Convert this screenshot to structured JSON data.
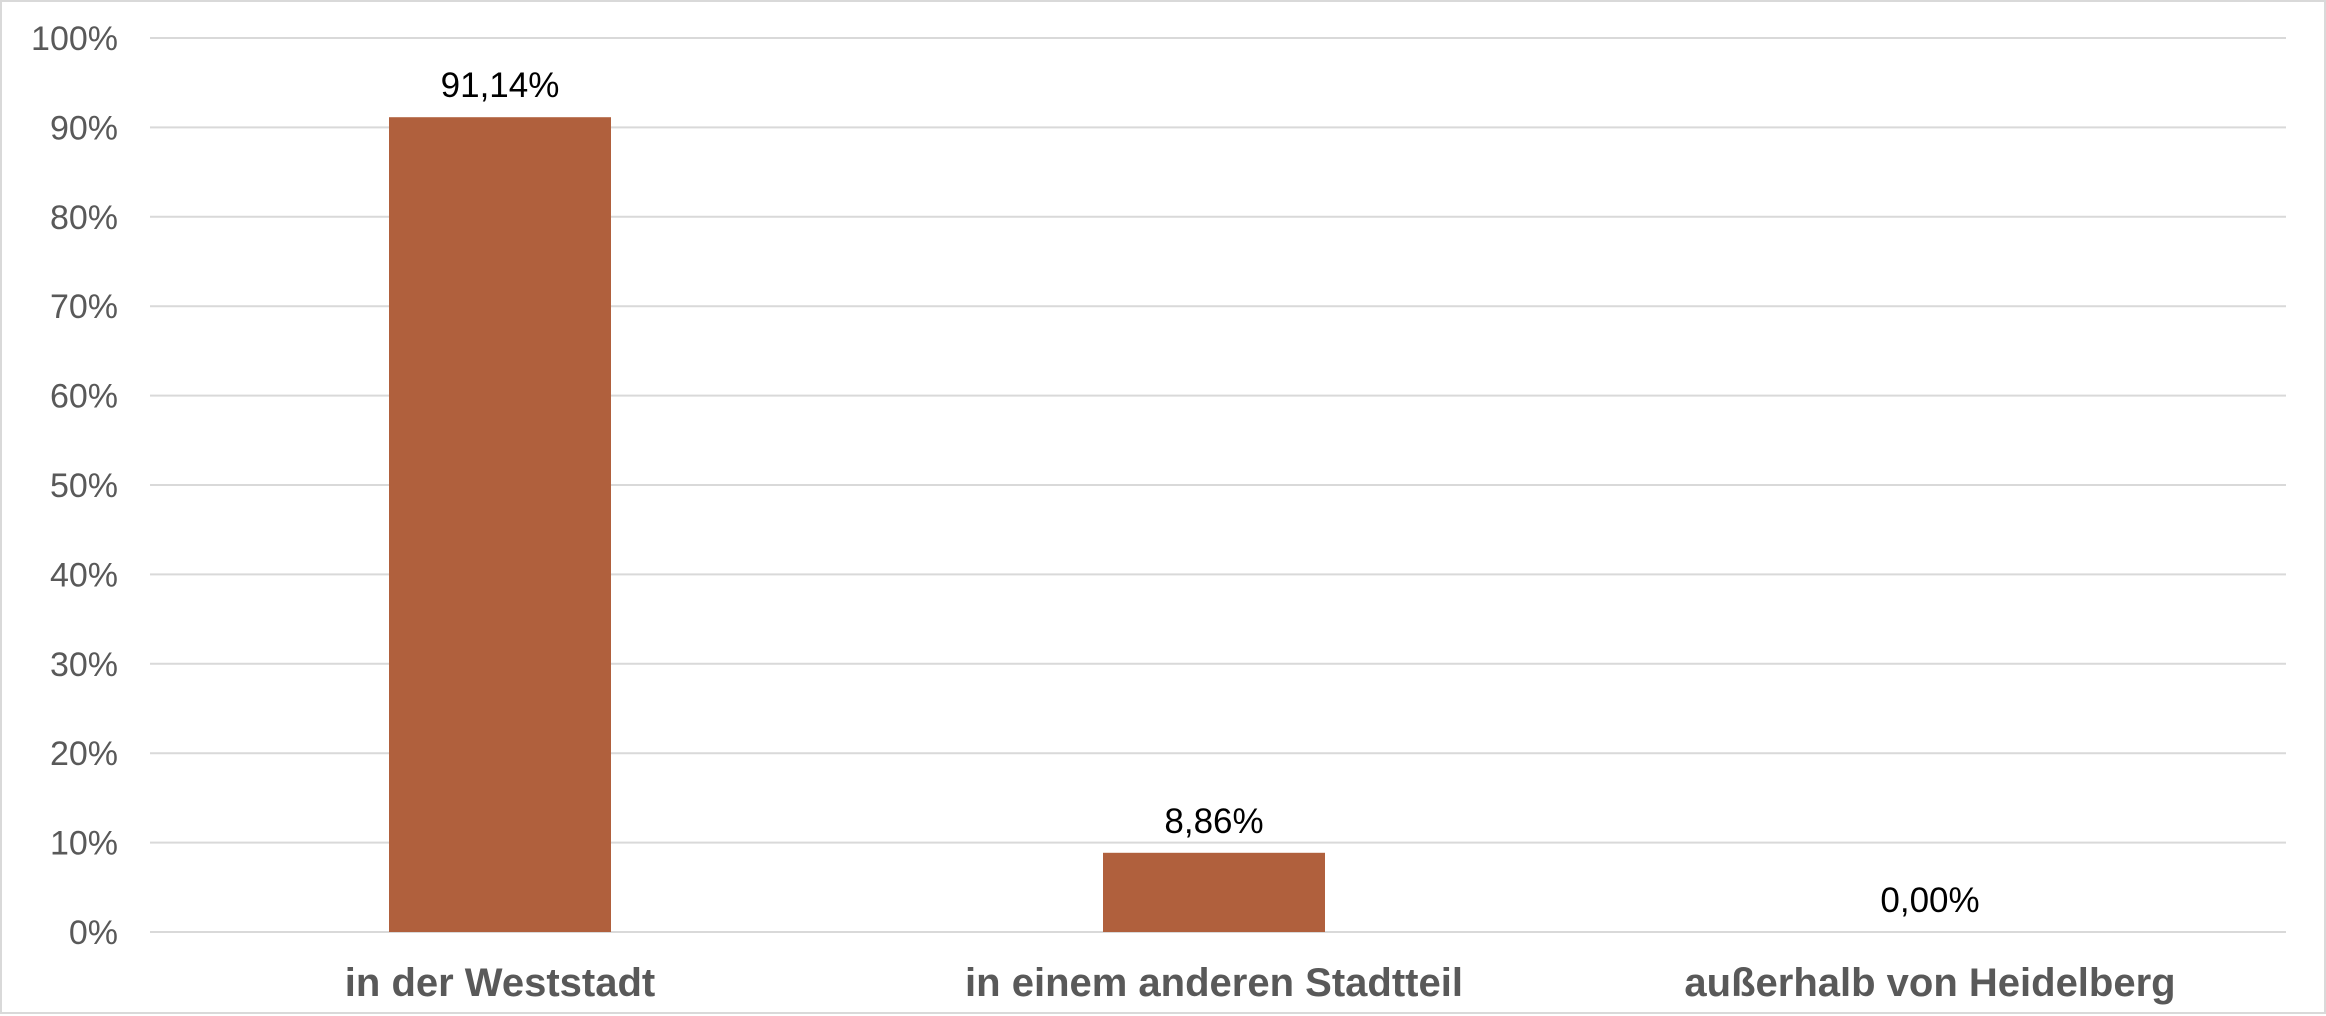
{
  "chart_data": {
    "type": "bar",
    "categories": [
      "in der Weststadt",
      "in einem anderen Stadtteil",
      "außerhalb von Heidelberg"
    ],
    "values": [
      91.14,
      8.86,
      0.0
    ],
    "data_labels": [
      "91,14%",
      "8,86%",
      "0,00%"
    ],
    "ylim": [
      0,
      100
    ],
    "y_ticks": [
      0,
      10,
      20,
      30,
      40,
      50,
      60,
      70,
      80,
      90,
      100
    ],
    "y_tick_labels": [
      "0%",
      "10%",
      "20%",
      "30%",
      "40%",
      "50%",
      "60%",
      "70%",
      "80%",
      "90%",
      "100%"
    ],
    "grid": true,
    "legend": "none",
    "bar_color": "#B0603D",
    "gridline_color": "#d9d9d9",
    "axis_text_color": "#595959"
  }
}
